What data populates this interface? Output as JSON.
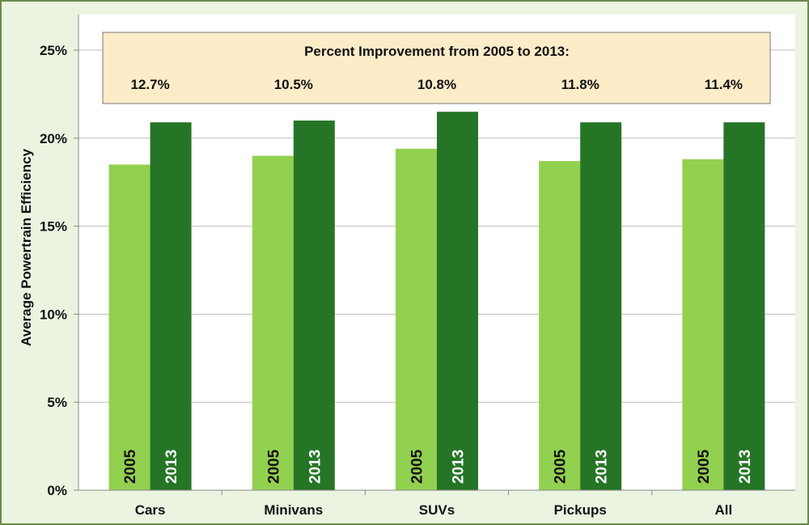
{
  "colors": {
    "frame_border": "#6a8a4a",
    "frame_bg": "#ebf4e0",
    "plot_bg": "#ffffff",
    "gridline": "#bdbdbd",
    "series_2005": "#92d050",
    "series_2013": "#267526",
    "annotation_bg": "#fcecc8",
    "annotation_border": "#777777"
  },
  "chart_data": {
    "type": "bar",
    "ylabel": "Average Powertrain Efficiency",
    "xlabel": "",
    "ylim": [
      0,
      25
    ],
    "y_ticks": [
      "0%",
      "5%",
      "10%",
      "15%",
      "20%",
      "25%"
    ],
    "grid": true,
    "categories": [
      "Cars",
      "Minivans",
      "SUVs",
      "Pickups",
      "All"
    ],
    "series": [
      {
        "name": "2005",
        "values": [
          18.5,
          19.0,
          19.4,
          18.7,
          18.8
        ]
      },
      {
        "name": "2013",
        "values": [
          20.9,
          21.0,
          21.5,
          20.9,
          20.9
        ]
      }
    ],
    "annotation": {
      "title": "Percent Improvement from 2005 to 2013:",
      "values": [
        "12.7%",
        "10.5%",
        "10.8%",
        "11.8%",
        "11.4%"
      ]
    }
  }
}
